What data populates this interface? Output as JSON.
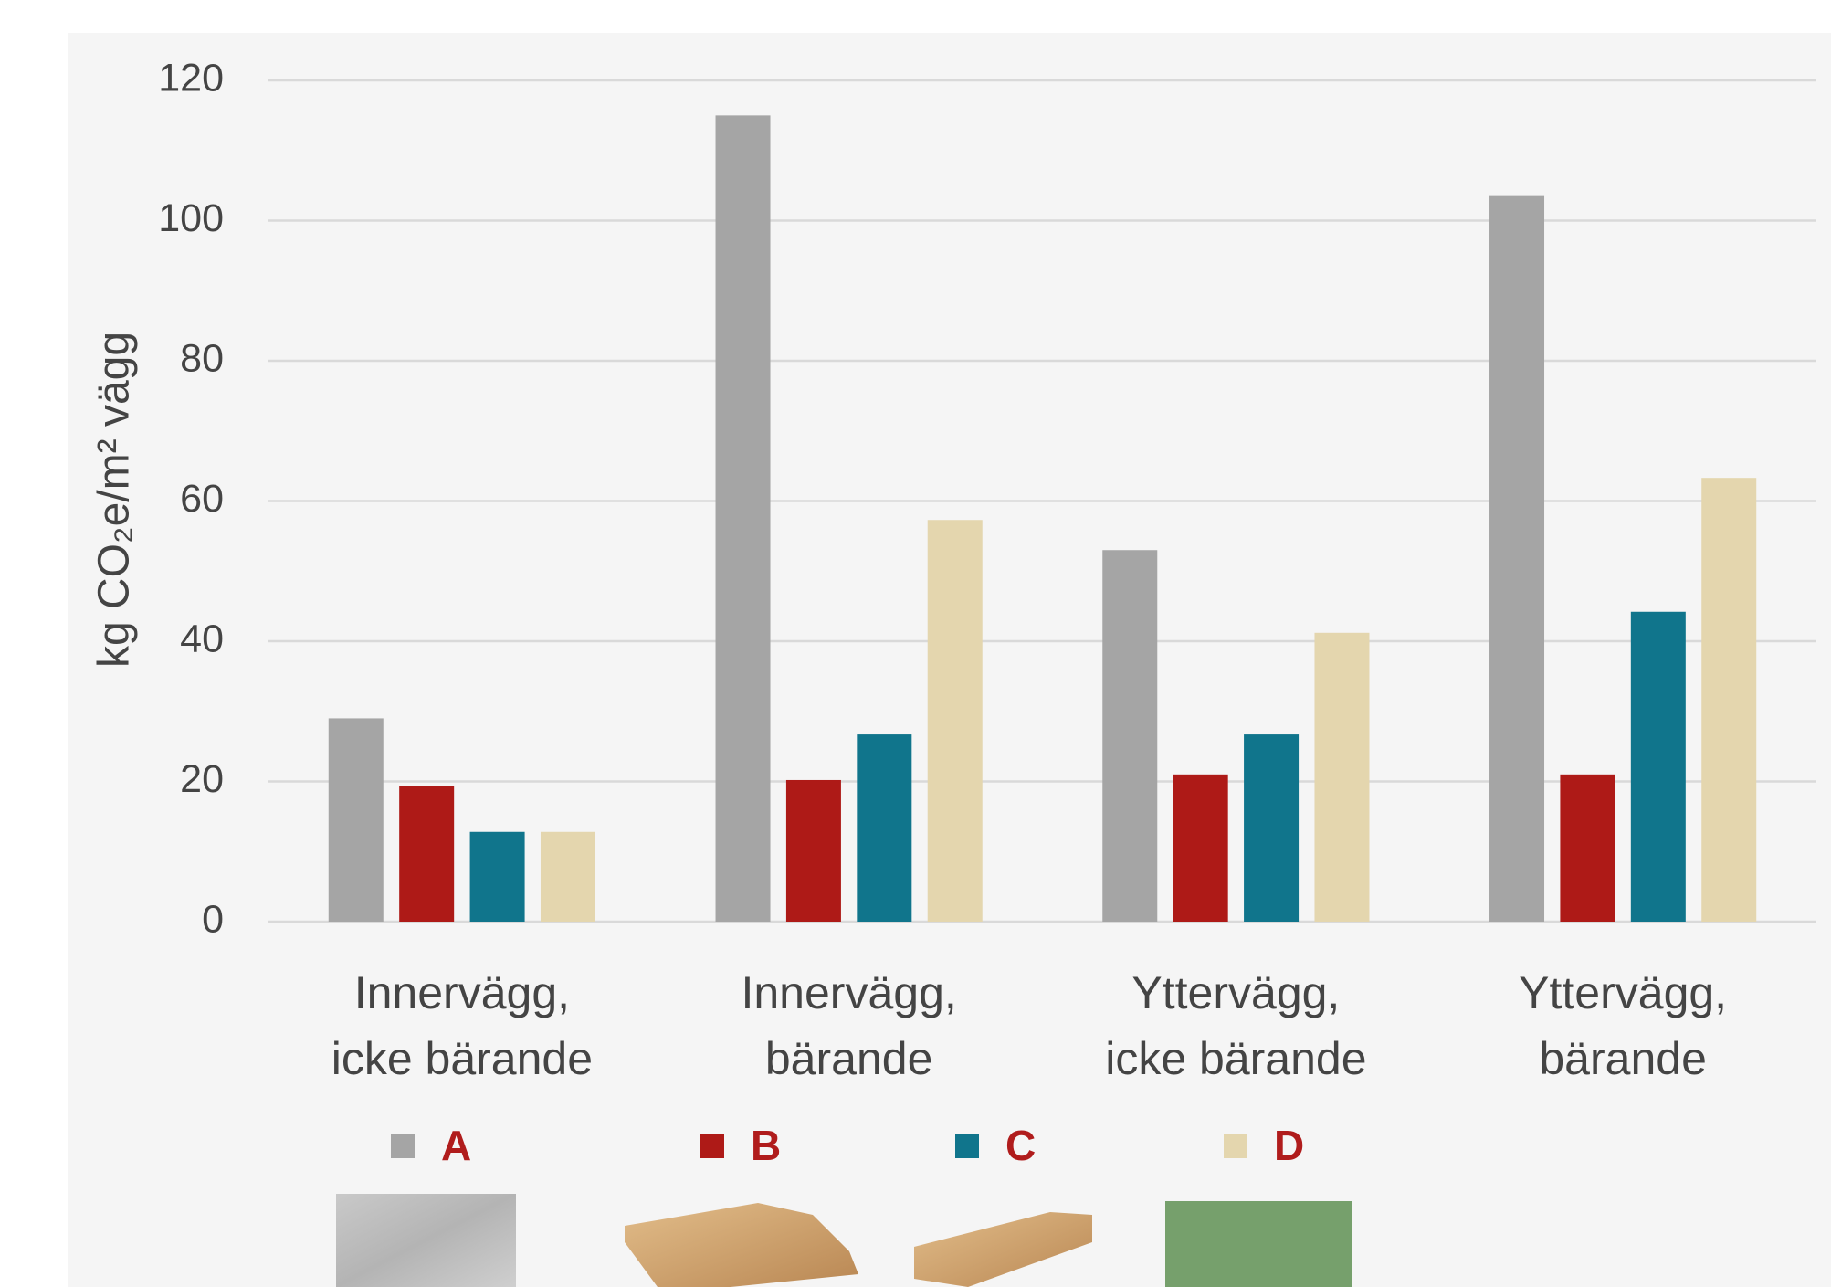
{
  "chart_data": {
    "type": "bar",
    "y_label": "kg CO₂e/m² vägg",
    "categories": [
      "Innervägg,\nicke bärande",
      "Innervägg,\nbärande",
      "Yttervägg,\nicke bärande",
      "Yttervägg,\nbärande"
    ],
    "series": [
      {
        "name": "A",
        "color": "#a5a5a5",
        "values": [
          29,
          115,
          53,
          103.5
        ]
      },
      {
        "name": "B",
        "color": "#ae1a17",
        "values": [
          19.3,
          20.2,
          21,
          21
        ]
      },
      {
        "name": "C",
        "color": "#10758c",
        "values": [
          12.8,
          26.7,
          26.7,
          44.2
        ]
      },
      {
        "name": "D",
        "color": "#e4d6ae",
        "values": [
          12.8,
          57.3,
          41.2,
          63.3
        ]
      }
    ],
    "ylim": [
      0,
      120
    ],
    "yticks": [
      0,
      20,
      40,
      60,
      80,
      100,
      120
    ],
    "grid": true
  }
}
